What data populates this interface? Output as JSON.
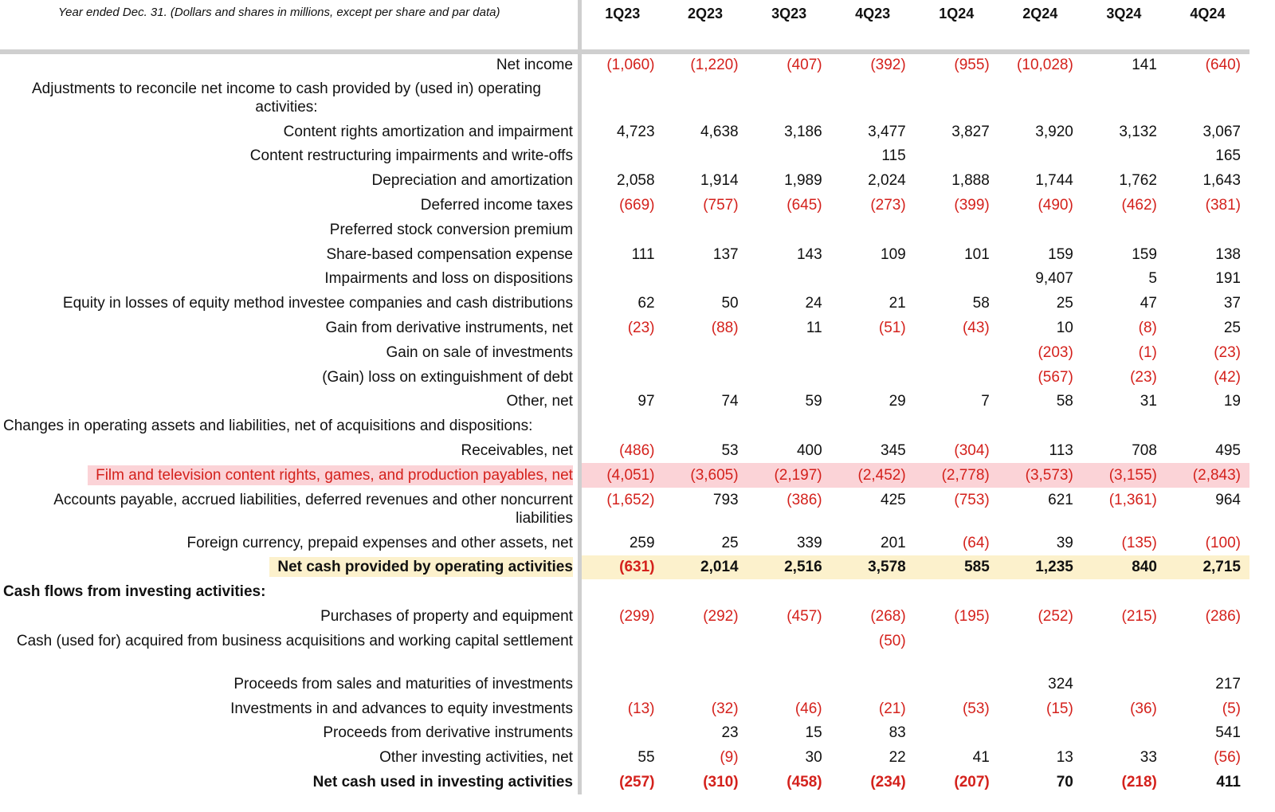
{
  "header": {
    "note": "Year ended Dec. 31. (Dollars and shares in millions, except per share and par data)",
    "columns": [
      "1Q23",
      "2Q23",
      "3Q23",
      "4Q23",
      "1Q24",
      "2Q24",
      "3Q24",
      "4Q24"
    ]
  },
  "negative_color": "#d4211c",
  "rows": [
    {
      "label": "Net income",
      "values": [
        "(1,060)",
        "(1,220)",
        "(407)",
        "(392)",
        "(955)",
        "(10,028)",
        "141",
        "(640)"
      ]
    },
    {
      "label": "Adjustments to reconcile net income to cash provided by (used in) operating activities:",
      "values": [
        null,
        null,
        null,
        null,
        null,
        null,
        null,
        null
      ]
    },
    {
      "label": "Content rights amortization and impairment",
      "values": [
        "4,723",
        "4,638",
        "3,186",
        "3,477",
        "3,827",
        "3,920",
        "3,132",
        "3,067"
      ]
    },
    {
      "label": "Content restructuring impairments and write-offs",
      "values": [
        null,
        null,
        null,
        "115",
        null,
        null,
        null,
        "165"
      ]
    },
    {
      "label": "Depreciation and amortization",
      "values": [
        "2,058",
        "1,914",
        "1,989",
        "2,024",
        "1,888",
        "1,744",
        "1,762",
        "1,643"
      ]
    },
    {
      "label": "Deferred income taxes",
      "values": [
        "(669)",
        "(757)",
        "(645)",
        "(273)",
        "(399)",
        "(490)",
        "(462)",
        "(381)"
      ]
    },
    {
      "label": "Preferred stock conversion premium",
      "values": [
        null,
        null,
        null,
        null,
        null,
        null,
        null,
        null
      ]
    },
    {
      "label": "Share-based compensation expense",
      "values": [
        "111",
        "137",
        "143",
        "109",
        "101",
        "159",
        "159",
        "138"
      ]
    },
    {
      "label": "Impairments and loss on dispositions",
      "values": [
        null,
        null,
        null,
        null,
        null,
        "9,407",
        "5",
        "191"
      ]
    },
    {
      "label": "Equity in losses of equity method investee companies and cash distributions",
      "values": [
        "62",
        "50",
        "24",
        "21",
        "58",
        "25",
        "47",
        "37"
      ]
    },
    {
      "label": "Gain from derivative instruments, net",
      "values": [
        "(23)",
        "(88)",
        "11",
        "(51)",
        "(43)",
        "10",
        "(8)",
        "25"
      ]
    },
    {
      "label": "Gain on sale of investments",
      "values": [
        null,
        null,
        null,
        null,
        null,
        "(203)",
        "(1)",
        "(23)"
      ]
    },
    {
      "label": "(Gain) loss on extinguishment of debt",
      "values": [
        null,
        null,
        null,
        null,
        null,
        "(567)",
        "(23)",
        "(42)"
      ]
    },
    {
      "label": "Other, net",
      "values": [
        "97",
        "74",
        "59",
        "29",
        "7",
        "58",
        "31",
        "19"
      ]
    },
    {
      "label": "Changes in operating assets and liabilities, net of acquisitions and dispositions:",
      "values": [
        null,
        null,
        null,
        null,
        null,
        null,
        null,
        null
      ]
    },
    {
      "label": "Receivables, net",
      "values": [
        "(486)",
        "53",
        "400",
        "345",
        "(304)",
        "113",
        "708",
        "495"
      ]
    },
    {
      "label": "Film and television content rights, games, and production payables, net",
      "values": [
        "(4,051)",
        "(3,605)",
        "(2,197)",
        "(2,452)",
        "(2,778)",
        "(3,573)",
        "(3,155)",
        "(2,843)"
      ],
      "highlight": "#fbd3d7",
      "label_color": "#d4211c"
    },
    {
      "label": "Accounts payable, accrued liabilities, deferred revenues and other noncurrent liabilities",
      "values": [
        "(1,652)",
        "793",
        "(386)",
        "425",
        "(753)",
        "621",
        "(1,361)",
        "964"
      ]
    },
    {
      "label": "Foreign currency, prepaid expenses and other assets, net",
      "values": [
        "259",
        "25",
        "339",
        "201",
        "(64)",
        "39",
        "(135)",
        "(100)"
      ]
    },
    {
      "label": "Net cash provided by operating activities",
      "values": [
        "(631)",
        "2,014",
        "2,516",
        "3,578",
        "585",
        "1,235",
        "840",
        "2,715"
      ],
      "bold": true,
      "highlight": "#fcf1cc"
    },
    {
      "label": "Cash flows from investing activities:",
      "values": [
        null,
        null,
        null,
        null,
        null,
        null,
        null,
        null
      ],
      "bold": true
    },
    {
      "label": "Purchases of property and equipment",
      "values": [
        "(299)",
        "(292)",
        "(457)",
        "(268)",
        "(195)",
        "(252)",
        "(215)",
        "(286)"
      ]
    },
    {
      "label": "Cash (used for) acquired from business acquisitions and working capital settlement",
      "values": [
        null,
        null,
        null,
        "(50)",
        null,
        null,
        null,
        null
      ]
    },
    {
      "label": "Proceeds from sales and maturities of investments",
      "values": [
        null,
        null,
        null,
        null,
        null,
        "324",
        null,
        "217"
      ]
    },
    {
      "label": "Investments in and advances to equity investments",
      "values": [
        "(13)",
        "(32)",
        "(46)",
        "(21)",
        "(53)",
        "(15)",
        "(36)",
        "(5)"
      ]
    },
    {
      "label": "Proceeds from derivative instruments",
      "values": [
        null,
        "23",
        "15",
        "83",
        null,
        null,
        null,
        "541"
      ]
    },
    {
      "label": "Other investing activities, net",
      "values": [
        "55",
        "(9)",
        "30",
        "22",
        "41",
        "13",
        "33",
        "(56)"
      ]
    },
    {
      "label": "Net cash used in investing activities",
      "values": [
        "(257)",
        "(310)",
        "(458)",
        "(234)",
        "(207)",
        "70",
        "(218)",
        "411"
      ],
      "bold": true
    }
  ]
}
